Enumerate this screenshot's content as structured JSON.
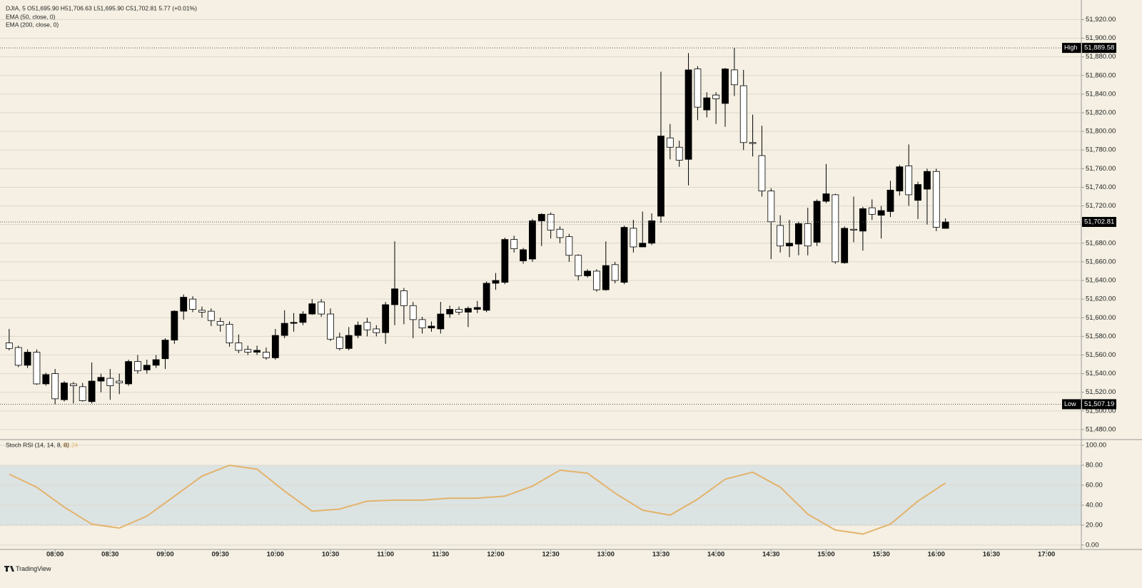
{
  "header": {
    "title": "DJIA, 5",
    "legend": "O51,695.90 H51,706.63 L51,695.90 C51,702.81 5.77 (+0.01%)",
    "indicators": [
      "EMA (50, close, 0)",
      "EMA (200, close, 0)"
    ],
    "branding": "TradingView"
  },
  "chart_data": [
    {
      "type": "candlestick",
      "x": [
        "07:35",
        "07:40",
        "07:45",
        "07:50",
        "07:55",
        "08:00",
        "08:05",
        "08:10",
        "08:15",
        "08:20",
        "08:25",
        "08:30",
        "08:35",
        "08:40",
        "08:45",
        "08:50",
        "08:55",
        "09:00",
        "09:05",
        "09:10",
        "09:15",
        "09:20",
        "09:25",
        "09:30",
        "09:35",
        "09:40",
        "09:45",
        "09:50",
        "09:55",
        "10:00",
        "10:05",
        "10:10",
        "10:15",
        "10:20",
        "10:25",
        "10:30",
        "10:35",
        "10:40",
        "10:45",
        "10:50",
        "10:55",
        "11:00",
        "11:05",
        "11:10",
        "11:15",
        "11:20",
        "11:25",
        "11:30",
        "11:35",
        "11:40",
        "11:45",
        "11:50",
        "11:55",
        "12:00",
        "12:05",
        "12:10",
        "12:15",
        "12:20",
        "12:25",
        "12:30",
        "12:35",
        "12:40",
        "12:45",
        "12:50",
        "12:55",
        "13:00",
        "13:05",
        "13:10",
        "13:15",
        "13:20",
        "13:25",
        "13:30",
        "13:35",
        "13:40",
        "13:45",
        "13:50",
        "13:55",
        "14:00",
        "14:05",
        "14:10",
        "14:15",
        "14:20",
        "14:25",
        "14:30",
        "14:35",
        "14:40",
        "14:45",
        "14:50",
        "14:55",
        "15:00",
        "15:05",
        "15:10",
        "15:15",
        "15:20",
        "15:25",
        "15:30",
        "15:35",
        "15:40",
        "15:45",
        "15:50",
        "15:55",
        "16:00",
        "16:05"
      ],
      "open": [
        51573,
        51568,
        51549,
        51563,
        51529,
        51540,
        51512,
        51529,
        51526,
        51510,
        51532,
        51535,
        51532,
        51529,
        51553,
        51544,
        51549,
        51556,
        51576,
        51607,
        51620,
        51608,
        51607,
        51596,
        51593,
        51573,
        51566,
        51563,
        51563,
        51557,
        51581,
        51594,
        51595,
        51604,
        51617,
        51604,
        51579,
        51567,
        51581,
        51595,
        51588,
        51584,
        51614,
        51629,
        51613,
        51598,
        51589,
        51588,
        51604,
        51609,
        51606,
        51609,
        51608,
        51637,
        51638,
        51684,
        51661,
        51663,
        51704,
        51711,
        51695,
        51687,
        51667,
        51645,
        51650,
        51630,
        51657,
        51638,
        51696,
        51676,
        51680,
        51709,
        51793,
        51783,
        51770,
        51867,
        51823,
        51839,
        51830,
        51866,
        51849,
        51788,
        51774,
        51736,
        51699,
        51677,
        51679,
        51701,
        51681,
        51725,
        51732,
        51659,
        51695,
        51693,
        51718,
        51710,
        51714,
        51736,
        51763,
        51726,
        51738,
        51757,
        51695.9
      ],
      "high": [
        51588,
        51570,
        51566,
        51566,
        51541,
        51545,
        51532,
        51531,
        51530,
        51552,
        51540,
        51545,
        51540,
        51555,
        51560,
        51555,
        51560,
        51578,
        51608,
        51625,
        51623,
        51612,
        51610,
        51600,
        51596,
        51582,
        51570,
        51570,
        51568,
        51588,
        51608,
        51605,
        51607,
        51620,
        51620,
        51610,
        51584,
        51590,
        51596,
        51600,
        51592,
        51617,
        51682,
        51632,
        51617,
        51601,
        51596,
        51617,
        51613,
        51612,
        51612,
        51618,
        51639,
        51648,
        51686,
        51688,
        51675,
        51706,
        51712,
        51713,
        51698,
        51690,
        51668,
        51652,
        51652,
        51682,
        51660,
        51699,
        51705,
        51714,
        51712,
        51864,
        51808,
        51790,
        51884,
        51870,
        51842,
        51842,
        51868,
        51889.58,
        51866,
        51818,
        51806,
        51739,
        51710,
        51705,
        51703,
        51718,
        51727,
        51765,
        51733,
        51698,
        51730,
        51719,
        51727,
        51720,
        51747,
        51764,
        51786,
        51746,
        51760,
        51760,
        51706.63
      ],
      "low": [
        51565,
        51547,
        51546,
        51528,
        51527,
        51507.19,
        51510,
        51508,
        51510,
        51508,
        51520,
        51512,
        51518,
        51527,
        51540,
        51540,
        51546,
        51545,
        51572,
        51598,
        51606,
        51600,
        51591,
        51585,
        51569,
        51562,
        51560,
        51560,
        51555,
        51555,
        51578,
        51585,
        51592,
        51603,
        51601,
        51575,
        51565,
        51565,
        51578,
        51580,
        51580,
        51572,
        51592,
        51593,
        51578,
        51583,
        51585,
        51583,
        51600,
        51603,
        51590,
        51605,
        51606,
        51630,
        51636,
        51670,
        51658,
        51660,
        51677,
        51685,
        51680,
        51660,
        51640,
        51643,
        51628,
        51629,
        51637,
        51636,
        51670,
        51676,
        51678,
        51702,
        51770,
        51762,
        51742,
        51812,
        51815,
        51808,
        51805,
        51838,
        51780,
        51773,
        51730,
        51663,
        51670,
        51665,
        51667,
        51667,
        51677,
        51723,
        51658,
        51658,
        51681,
        51672,
        51705,
        51685,
        51708,
        51731,
        51720,
        51706,
        51700,
        51693,
        51695.9
      ],
      "close": [
        51567,
        51549,
        51563,
        51529,
        51539,
        51513,
        51530,
        51527,
        51511,
        51532,
        51536,
        51527,
        51530,
        51553,
        51543,
        51549,
        51555,
        51576,
        51607,
        51622,
        51609,
        51606,
        51597,
        51592,
        51573,
        51565,
        51563,
        51565,
        51557,
        51581,
        51594,
        51595,
        51604,
        51615,
        51604,
        51577,
        51567,
        51581,
        51592,
        51587,
        51584,
        51614,
        51631,
        51613,
        51598,
        51589,
        51591,
        51604,
        51609,
        51606,
        51610,
        51611,
        51637,
        51640,
        51684,
        51674,
        51673,
        51704,
        51711,
        51694,
        51686,
        51667,
        51645,
        51650,
        51630,
        51656,
        51640,
        51697,
        51676,
        51680,
        51704,
        51795,
        51783,
        51769,
        51866,
        51826,
        51836,
        51835,
        51867,
        51850,
        51788,
        51787,
        51736,
        51703,
        51677,
        51680,
        51701,
        51677,
        51725,
        51733,
        51660,
        51696,
        51694,
        51717,
        51711,
        51715,
        51737,
        51762,
        51732,
        51743,
        51757,
        51697,
        51702.81
      ],
      "up_color": "#000000",
      "down_color": "#ffffff",
      "xlim": [
        "07:30",
        "17:19"
      ],
      "xticks": [
        "08:00",
        "08:30",
        "09:00",
        "09:30",
        "10:00",
        "10:30",
        "11:00",
        "11:30",
        "12:00",
        "12:30",
        "13:00",
        "13:30",
        "14:00",
        "14:30",
        "15:00",
        "15:30",
        "16:00",
        "16:30",
        "17:00"
      ],
      "ylim": [
        51470,
        51941
      ],
      "yticks": [
        {
          "value": 51480,
          "label": "51,480.00"
        },
        {
          "value": 51500,
          "label": "51,500.00"
        },
        {
          "value": 51520,
          "label": "51,520.00"
        },
        {
          "value": 51540,
          "label": "51,540.00"
        },
        {
          "value": 51560,
          "label": "51,560.00"
        },
        {
          "value": 51580,
          "label": "51,580.00"
        },
        {
          "value": 51600,
          "label": "51,600.00"
        },
        {
          "value": 51620,
          "label": "51,620.00"
        },
        {
          "value": 51640,
          "label": "51,640.00"
        },
        {
          "value": 51660,
          "label": "51,660.00"
        },
        {
          "value": 51680,
          "label": "51,680.00"
        },
        {
          "value": 51700,
          "label": "51,700.00"
        },
        {
          "value": 51720,
          "label": "51,720.00"
        },
        {
          "value": 51740,
          "label": "51,740.00"
        },
        {
          "value": 51760,
          "label": "51,760.00"
        },
        {
          "value": 51780,
          "label": "51,780.00"
        },
        {
          "value": 51800,
          "label": "51,800.00"
        },
        {
          "value": 51820,
          "label": "51,820.00"
        },
        {
          "value": 51840,
          "label": "51,840.00"
        },
        {
          "value": 51860,
          "label": "51,860.00"
        },
        {
          "value": 51880,
          "label": "51,880.00"
        },
        {
          "value": 51900,
          "label": "51,900.00"
        },
        {
          "value": 51920,
          "label": "51,920.00"
        }
      ],
      "grid": true,
      "markers": [
        {
          "name": "High",
          "value": 51889.58,
          "label": "51,889.58"
        },
        {
          "name": "Low",
          "value": 51507.19,
          "label": "51,507.19"
        },
        {
          "value": 51702.81,
          "label": "51,702.81"
        }
      ]
    },
    {
      "type": "line",
      "title": "Stoch RSI (14, 14, 8, 8)",
      "x": [
        "07:35",
        "07:50",
        "08:05",
        "08:20",
        "08:35",
        "08:50",
        "09:05",
        "09:20",
        "09:35",
        "09:50",
        "10:05",
        "10:20",
        "10:35",
        "10:50",
        "11:05",
        "11:20",
        "11:35",
        "11:50",
        "12:05",
        "12:20",
        "12:35",
        "12:50",
        "13:05",
        "13:20",
        "13:35",
        "13:50",
        "14:05",
        "14:20",
        "14:35",
        "14:50",
        "15:05",
        "15:20",
        "15:35",
        "15:50",
        "16:05"
      ],
      "series": [
        {
          "color": "#e3b36b",
          "values": [
            71,
            58,
            38,
            21,
            17,
            29,
            49,
            69,
            80,
            76,
            54,
            34,
            36,
            44,
            45,
            45,
            47,
            47,
            49,
            59,
            75,
            72,
            52,
            35,
            30,
            46,
            66,
            73,
            58,
            31,
            15,
            11,
            21,
            44,
            62.24
          ]
        }
      ],
      "ylim": [
        -8,
        105
      ],
      "yticks": [
        {
          "value": 0,
          "label": "0.00"
        },
        {
          "value": 20,
          "label": "20.00"
        },
        {
          "value": 40,
          "label": "40.00"
        },
        {
          "value": 60,
          "label": "60.00"
        },
        {
          "value": 80,
          "label": "80.00"
        },
        {
          "value": 100,
          "label": "100.00"
        }
      ],
      "bands": [
        20,
        80
      ],
      "band_color": "#dce3e3"
    }
  ]
}
